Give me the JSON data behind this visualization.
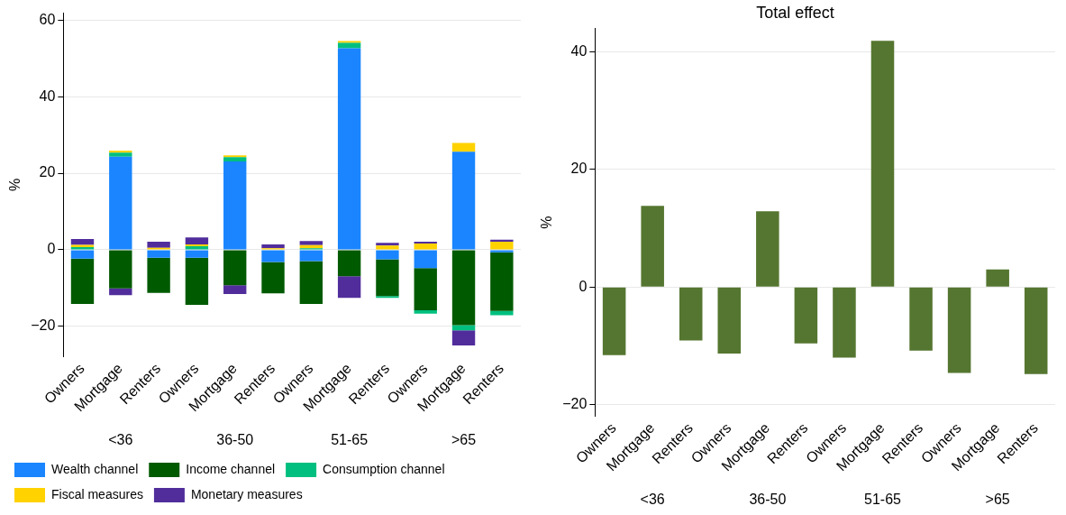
{
  "chart_data": [
    {
      "type": "bar",
      "stacked": true,
      "ylabel": "%",
      "categories": [
        "Owners",
        "Mortgage",
        "Renters",
        "Owners",
        "Mortgage",
        "Renters",
        "Owners",
        "Mortgage",
        "Renters",
        "Owners",
        "Mortgage",
        "Renters"
      ],
      "annotations": [
        "<36",
        "36-50",
        "51-65",
        ">65"
      ],
      "series": [
        {
          "name": "Wealth channel",
          "color": "#1a85ff",
          "values": [
            -2.3,
            24.3,
            -2.1,
            -2.1,
            23.1,
            -3.2,
            -3.0,
            52.7,
            -2.5,
            -4.8,
            25.6,
            -0.7
          ]
        },
        {
          "name": "Income channel",
          "color": "#005a00",
          "values": [
            -11.9,
            -10.1,
            -9.2,
            -12.3,
            -9.3,
            -8.2,
            -11.2,
            -6.9,
            -9.6,
            -11.0,
            -19.7,
            -15.3
          ]
        },
        {
          "name": "Consumption channel",
          "color": "#00bf7f",
          "values": [
            0.7,
            1.1,
            null,
            0.9,
            1.1,
            null,
            0.4,
            1.4,
            -0.5,
            -0.9,
            -1.4,
            -1.1
          ]
        },
        {
          "name": "Fiscal measures",
          "color": "#ffd200",
          "values": [
            0.6,
            0.5,
            0.5,
            0.5,
            0.5,
            0.4,
            0.8,
            0.5,
            1.1,
            1.6,
            2.3,
            2.1
          ]
        },
        {
          "name": "Monetary measures",
          "color": "#512d9c",
          "values": [
            1.5,
            -1.8,
            1.6,
            1.8,
            -2.3,
            1.0,
            1.1,
            -5.7,
            0.7,
            0.5,
            -3.9,
            0.5
          ]
        }
      ],
      "ylim": [
        -28,
        62
      ],
      "yticks": [
        -20,
        0,
        20,
        40,
        60
      ],
      "grid": "y",
      "legend": "bottom"
    },
    {
      "type": "bar",
      "title": "Total effect",
      "ylabel": "%",
      "categories": [
        "Owners",
        "Mortgage",
        "Renters",
        "Owners",
        "Mortgage",
        "Renters",
        "Owners",
        "Mortgage",
        "Renters",
        "Owners",
        "Mortgage",
        "Renters"
      ],
      "annotations": [
        "<36",
        "36-50",
        "51-65",
        ">65"
      ],
      "values": [
        -11.6,
        13.8,
        -9.1,
        -11.3,
        12.9,
        -9.6,
        -12.0,
        41.9,
        -10.8,
        -14.6,
        3.0,
        -14.8
      ],
      "color": "#557630",
      "ylim": [
        -22,
        44
      ],
      "yticks": [
        -20,
        0,
        20,
        40
      ],
      "grid": "y"
    }
  ]
}
